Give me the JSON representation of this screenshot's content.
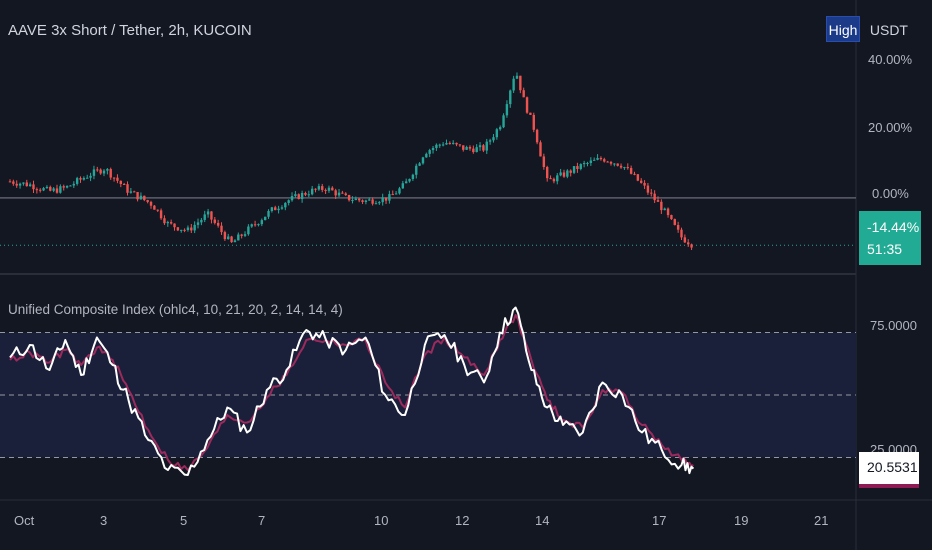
{
  "header": {
    "symbol_title": "AAVE 3x Short / Tether, 2h, KUCOIN",
    "high_label": "High",
    "currency": "USDT"
  },
  "price_axis": {
    "labels": [
      "40.00%",
      "20.00%",
      "0.00%"
    ],
    "current_pct": "-14.44%",
    "countdown": "51:35"
  },
  "indicator": {
    "title": "Unified Composite Index (ohlc4, 10, 21, 20, 2, 14, 14, 4)",
    "axis_labels": [
      "75.0000",
      "25.0000"
    ],
    "current_value": "20.5531"
  },
  "time_axis": {
    "labels": [
      "Oct",
      "3",
      "5",
      "7",
      "10",
      "12",
      "14",
      "17",
      "19",
      "21"
    ]
  },
  "colors": {
    "background": "#131722",
    "up_candle": "#26a69a",
    "down_candle": "#ef5350",
    "index_line": "#ffffff",
    "signal_line": "#9c2a5c",
    "price_tag": "#22ab94",
    "band_fill": "#1a1f3a"
  },
  "chart_data": [
    {
      "type": "candlestick",
      "title": "AAVE 3x Short / Tether, 2h, KUCOIN",
      "ylabel": "USDT",
      "y_axis_unit": "%",
      "ylim": [
        -22,
        42
      ],
      "yticks": [
        40,
        20,
        0
      ],
      "x_tick_labels": [
        "Oct",
        "3",
        "5",
        "7",
        "10",
        "12",
        "14",
        "17",
        "19",
        "21"
      ],
      "close_path": [
        {
          "x": 0,
          "y": 5
        },
        {
          "x": 0.5,
          "y": 4
        },
        {
          "x": 1.0,
          "y": 2
        },
        {
          "x": 1.4,
          "y": 3
        },
        {
          "x": 2.0,
          "y": 7
        },
        {
          "x": 2.4,
          "y": 9
        },
        {
          "x": 3.0,
          "y": 2
        },
        {
          "x": 3.6,
          "y": -2
        },
        {
          "x": 4.0,
          "y": -8
        },
        {
          "x": 4.5,
          "y": -10
        },
        {
          "x": 5.0,
          "y": -5
        },
        {
          "x": 5.6,
          "y": -14
        },
        {
          "x": 6.0,
          "y": -10
        },
        {
          "x": 6.6,
          "y": -4
        },
        {
          "x": 7.0,
          "y": -1
        },
        {
          "x": 7.6,
          "y": 2
        },
        {
          "x": 8.0,
          "y": 3
        },
        {
          "x": 8.5,
          "y": 0
        },
        {
          "x": 9.0,
          "y": -1
        },
        {
          "x": 9.6,
          "y": 0
        },
        {
          "x": 10.0,
          "y": 4
        },
        {
          "x": 10.5,
          "y": 14
        },
        {
          "x": 11.0,
          "y": 17
        },
        {
          "x": 11.5,
          "y": 15
        },
        {
          "x": 12.0,
          "y": 15
        },
        {
          "x": 12.4,
          "y": 22
        },
        {
          "x": 12.8,
          "y": 39
        },
        {
          "x": 13.0,
          "y": 30
        },
        {
          "x": 13.3,
          "y": 20
        },
        {
          "x": 13.6,
          "y": 5
        },
        {
          "x": 14.0,
          "y": 7
        },
        {
          "x": 14.5,
          "y": 10
        },
        {
          "x": 15.0,
          "y": 12
        },
        {
          "x": 15.5,
          "y": 10
        },
        {
          "x": 16.0,
          "y": 4
        },
        {
          "x": 16.5,
          "y": -3
        },
        {
          "x": 17.0,
          "y": -12
        },
        {
          "x": 17.3,
          "y": -14.44
        }
      ]
    },
    {
      "type": "line",
      "title": "Unified Composite Index (ohlc4, 10, 21, 20, 2, 14, 14, 4)",
      "ylim": [
        8,
        92
      ],
      "yticks": [
        75,
        50,
        25
      ],
      "reference_lines": [
        75,
        50,
        25
      ],
      "band": [
        25,
        75
      ],
      "series": [
        {
          "x": [
            0,
            0.5,
            1.0,
            1.4,
            1.8,
            2.2,
            2.6,
            3.0,
            3.5,
            4.0,
            4.5,
            5.0,
            5.5,
            6.0,
            6.5,
            7.0,
            7.5,
            8.0,
            8.5,
            9.0,
            9.5,
            10.0,
            10.5,
            11.0,
            11.5,
            12.0,
            12.4,
            12.8,
            13.2,
            13.6,
            14.0,
            14.5,
            15.0,
            15.5,
            16.0,
            16.5,
            17.0,
            17.3
          ],
          "values": [
            65,
            70,
            60,
            72,
            58,
            73,
            62,
            48,
            32,
            20,
            18,
            32,
            45,
            35,
            52,
            60,
            76,
            72,
            68,
            73,
            50,
            42,
            70,
            74,
            62,
            55,
            75,
            85,
            60,
            45,
            38,
            35,
            55,
            50,
            35,
            28,
            22,
            20.5531
          ]
        },
        {
          "x": [
            0,
            0.5,
            1.0,
            1.4,
            1.8,
            2.2,
            2.6,
            3.0,
            3.5,
            4.0,
            4.5,
            5.0,
            5.5,
            6.0,
            6.5,
            7.0,
            7.5,
            8.0,
            8.5,
            9.0,
            9.5,
            10.0,
            10.5,
            11.0,
            11.5,
            12.0,
            12.4,
            12.8,
            13.2,
            13.6,
            14.0,
            14.5,
            15.0,
            15.5,
            16.0,
            16.5,
            17.0,
            17.3
          ],
          "values": [
            64,
            67,
            63,
            68,
            62,
            69,
            64,
            52,
            36,
            24,
            20,
            29,
            42,
            39,
            49,
            58,
            72,
            72,
            70,
            72,
            55,
            45,
            66,
            73,
            65,
            58,
            72,
            82,
            64,
            48,
            40,
            37,
            52,
            51,
            38,
            30,
            24,
            22
          ]
        }
      ]
    }
  ]
}
